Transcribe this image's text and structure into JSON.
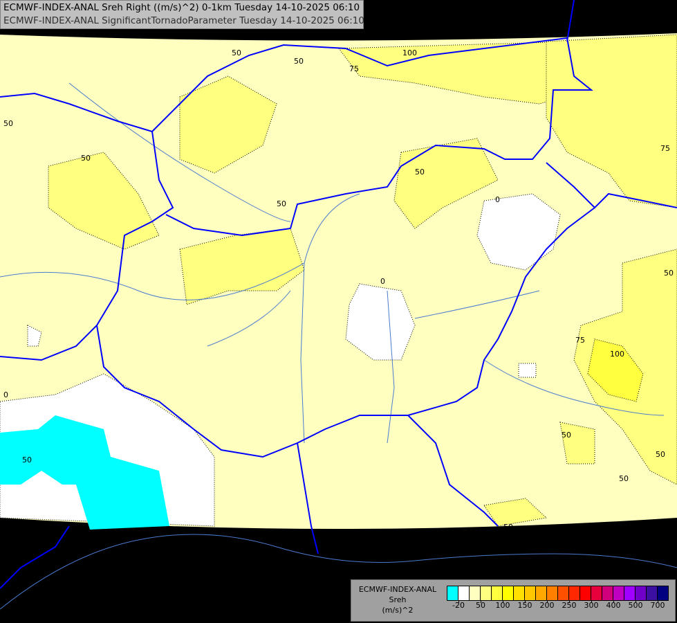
{
  "title": {
    "line1": "ECMWF-INDEX-ANAL Sreh Right ((m/s)^2) 0-1km Tuesday 14-10-2025 06:10",
    "line2": "ECMWF-INDEX-ANAL SignificantTornadoParameter Tuesday 14-10-2025 06:10"
  },
  "legend": {
    "model": "ECMWF-INDEX-ANAL",
    "field": "Sreh",
    "unit": "(m/s)^2",
    "colors": [
      "#00ffff",
      "#ffffff",
      "#ffffc0",
      "#ffff80",
      "#ffff40",
      "#ffff00",
      "#ffe000",
      "#ffc800",
      "#ffa800",
      "#ff8000",
      "#ff5000",
      "#ff2800",
      "#ff0000",
      "#e8003c",
      "#d0007c",
      "#c000c0",
      "#a000ff",
      "#7000c8",
      "#3c10a0",
      "#000080"
    ],
    "ticks": [
      "-20",
      "50",
      "100",
      "150",
      "200",
      "250",
      "300",
      "400",
      "500",
      "700"
    ]
  },
  "contour_labels": [
    "50",
    "50",
    "50",
    "75",
    "100",
    "50",
    "50",
    "50",
    "0",
    "0",
    "75",
    "50",
    "75",
    "100",
    "50",
    "50",
    "50",
    "0",
    "50",
    "50"
  ],
  "colors": {
    "background": "#000000",
    "border": "#0000ff",
    "river": "#4a7ad0"
  }
}
